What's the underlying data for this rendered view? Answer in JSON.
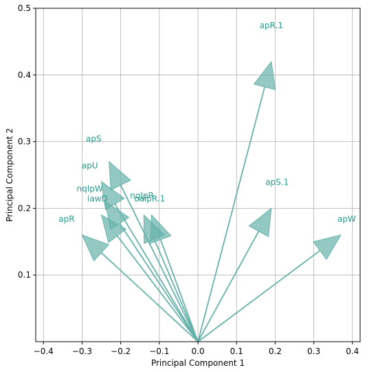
{
  "chart_data": {
    "type": "biplot-vectors",
    "xlabel": "Principal Component 1",
    "ylabel": "Principal Component 2",
    "xlim": [
      -0.42,
      0.42
    ],
    "ylim": [
      0.0,
      0.5
    ],
    "xticks": [
      -0.4,
      -0.3,
      -0.2,
      -0.1,
      0.0,
      0.1,
      0.2,
      0.3,
      0.4
    ],
    "xtick_labels": [
      "−0.4",
      "−0.3",
      "−0.2",
      "−0.1",
      "0.0",
      "0.1",
      "0.2",
      "0.3",
      "0.4"
    ],
    "yticks": [
      0.1,
      0.2,
      0.3,
      0.4,
      0.5
    ],
    "ytick_labels": [
      "0.1",
      "0.2",
      "0.3",
      "0.4",
      "0.5"
    ],
    "grid": true,
    "origin": [
      0.0,
      0.0
    ],
    "color": "#66b2aa",
    "label_color": "#2a9d8f",
    "vectors": [
      {
        "name": "apR.1",
        "x": 0.19,
        "y": 0.42
      },
      {
        "name": "apS",
        "x": -0.23,
        "y": 0.27
      },
      {
        "name": "apU",
        "x": -0.25,
        "y": 0.24
      },
      {
        "name": "nqIpW",
        "x": -0.24,
        "y": 0.21
      },
      {
        "name": "iawD",
        "x": -0.25,
        "y": 0.19
      },
      {
        "name": "nqIpR",
        "x": -0.14,
        "y": 0.19
      },
      {
        "name": "oalpR.1",
        "x": -0.12,
        "y": 0.19
      },
      {
        "name": "apR",
        "x": -0.3,
        "y": 0.16
      },
      {
        "name": "apS.1",
        "x": 0.19,
        "y": 0.2
      },
      {
        "name": "apW",
        "x": 0.37,
        "y": 0.16
      }
    ],
    "label_positions": [
      {
        "name": "apR.1",
        "x": 0.19,
        "y": 0.47
      },
      {
        "name": "apS",
        "x": -0.27,
        "y": 0.3
      },
      {
        "name": "apU",
        "x": -0.28,
        "y": 0.26
      },
      {
        "name": "nqIpW",
        "x": -0.28,
        "y": 0.225
      },
      {
        "name": "iawD",
        "x": -0.26,
        "y": 0.21
      },
      {
        "name": "nqIpR",
        "x": -0.145,
        "y": 0.215
      },
      {
        "name": "oalpR.1",
        "x": -0.125,
        "y": 0.21
      },
      {
        "name": "apR",
        "x": -0.34,
        "y": 0.18
      },
      {
        "name": "apS.1",
        "x": 0.205,
        "y": 0.235
      },
      {
        "name": "apW",
        "x": 0.385,
        "y": 0.18
      }
    ]
  }
}
